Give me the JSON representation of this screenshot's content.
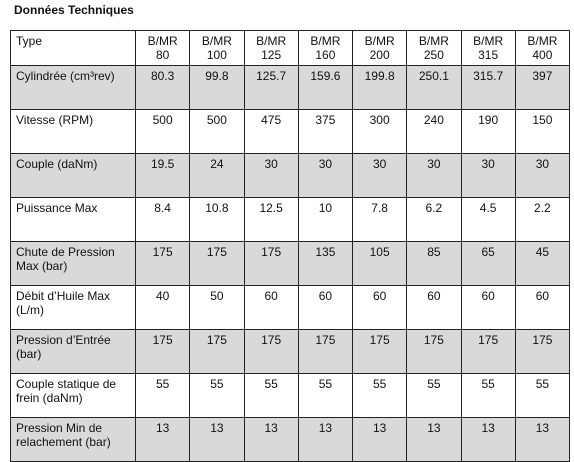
{
  "title": "Données Techniques",
  "table": {
    "header": [
      "Type",
      "B/MR\n80",
      "B/MR\n100",
      "B/MR\n125",
      "B/MR\n160",
      "B/MR\n200",
      "B/MR\n250",
      "B/MR\n315",
      "B/MR\n400"
    ],
    "rows": [
      [
        "Cylindrée (cm³rev)",
        80.3,
        99.8,
        125.7,
        159.6,
        199.8,
        250.1,
        315.7,
        397
      ],
      [
        "Vitesse  (RPM)",
        500,
        500,
        475,
        375,
        300,
        240,
        190,
        150
      ],
      [
        "Couple   (daNm)",
        19.5,
        24,
        30,
        30,
        30,
        30,
        30,
        30
      ],
      [
        "Puissance Max",
        8.4,
        10.8,
        12.5,
        10,
        7.8,
        6.2,
        4.5,
        2.2
      ],
      [
        "Chute de Pression\nMax (bar)",
        175,
        175,
        175,
        135,
        105,
        85,
        65,
        45
      ],
      [
        "Débit d’Huile Max\n(L/m)",
        40,
        50,
        60,
        60,
        60,
        60,
        60,
        60
      ],
      [
        "Pression d’Entrée\n(bar)",
        175,
        175,
        175,
        175,
        175,
        175,
        175,
        175
      ],
      [
        "Couple statique de\nfrein (daNm)",
        55,
        55,
        55,
        55,
        55,
        55,
        55,
        55
      ],
      [
        "Pression Min de\nrelachement (bar)",
        13,
        13,
        13,
        13,
        13,
        13,
        13,
        13
      ]
    ]
  }
}
